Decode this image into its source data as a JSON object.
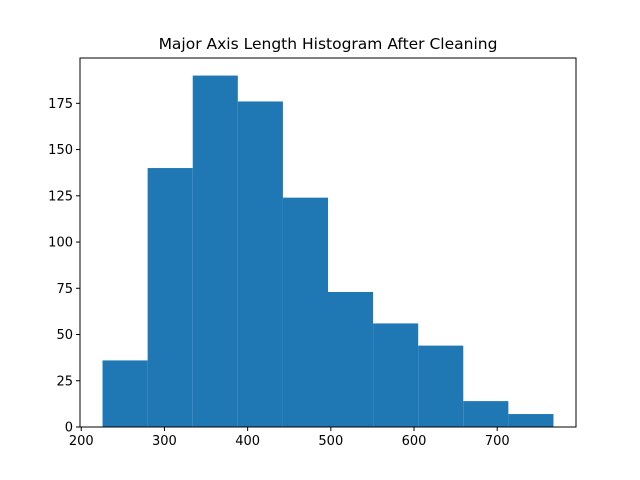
{
  "chart_data": {
    "type": "histogram",
    "title": "Major Axis Length Histogram After Cleaning",
    "xlabel": "",
    "ylabel": "",
    "bin_edges": [
      225.6,
      279.8,
      334.0,
      388.2,
      442.4,
      496.6,
      550.8,
      605.0,
      659.2,
      713.4,
      767.6
    ],
    "values": [
      36,
      140,
      190,
      176,
      124,
      73,
      56,
      44,
      14,
      7
    ],
    "xlim": [
      198.5,
      794.7
    ],
    "ylim": [
      0,
      199.5
    ],
    "xticks": [
      200,
      300,
      400,
      500,
      600,
      700
    ],
    "yticks": [
      0,
      25,
      50,
      75,
      100,
      125,
      150,
      175
    ],
    "bar_color": "#1f77b4",
    "grid": false,
    "legend": "none"
  }
}
